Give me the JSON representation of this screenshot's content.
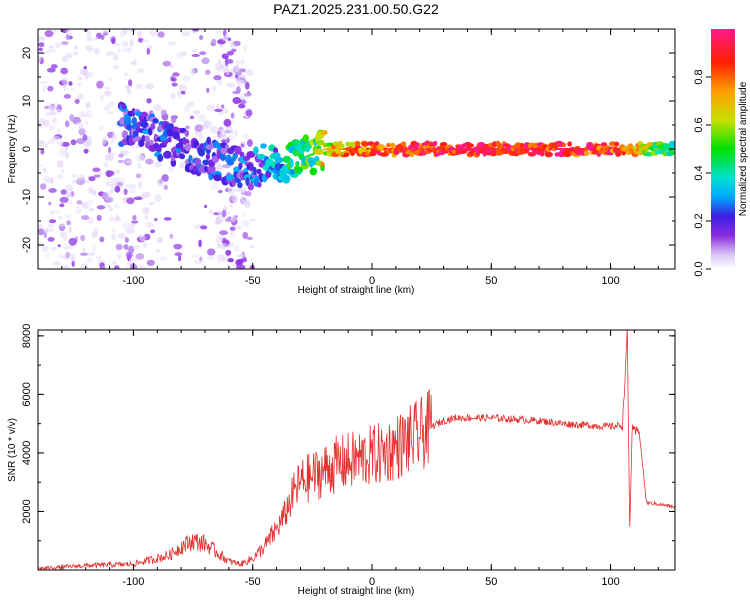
{
  "page_title": "PAZ1.2025.231.00.50.G22",
  "colors": {
    "snr_line": "#e53030",
    "colormap": [
      "#ffffff",
      "#d7c4f4",
      "#8a2be2",
      "#3a1fe0",
      "#00a8ff",
      "#00e0d0",
      "#00e000",
      "#c8e000",
      "#ffa000",
      "#ff2000",
      "#ff1a8a"
    ]
  },
  "chart_data": [
    {
      "type": "heatmap",
      "title": "PAZ1.2025.231.00.50.G22",
      "xlabel": "Height of straight line (km)",
      "ylabel": "Frequency (Hz)",
      "xlim": [
        -140,
        127
      ],
      "ylim": [
        -25,
        25
      ],
      "xticks": [
        -100,
        -50,
        0,
        50,
        100
      ],
      "yticks": [
        -20,
        -10,
        0,
        10,
        20
      ],
      "ytick_labels": [
        "-20",
        "-10",
        "0",
        "10",
        "20"
      ],
      "xtick_labels": [
        "-100",
        "-50",
        "0",
        "50",
        "100"
      ],
      "colorbar": {
        "label": "Normalized spectral amplitude",
        "range": [
          0,
          1
        ],
        "ticks": [
          0.0,
          0.2,
          0.4,
          0.6,
          0.8
        ],
        "tick_labels": [
          "0.0",
          "0.2",
          "0.4",
          "0.6",
          "0.8"
        ]
      },
      "ridge": {
        "x": [
          -100,
          -90,
          -80,
          -70,
          -60,
          -50,
          -45,
          -40,
          -35,
          -30,
          -25,
          -20,
          -10,
          0,
          10,
          50,
          100,
          127
        ],
        "freq": [
          5,
          2,
          0,
          -1.5,
          -3,
          -5,
          -3,
          -2,
          -3,
          -2,
          -1,
          0,
          0,
          0,
          0,
          0,
          0,
          0
        ],
        "amplitude": [
          0.25,
          0.25,
          0.25,
          0.25,
          0.25,
          0.3,
          0.35,
          0.4,
          0.5,
          0.5,
          0.55,
          0.7,
          0.8,
          0.85,
          0.9,
          0.95,
          0.9,
          0.5
        ]
      }
    },
    {
      "type": "line",
      "xlabel": "Height of straight line (km)",
      "ylabel": "SNR (10 * v/v)",
      "xlim": [
        -140,
        127
      ],
      "ylim": [
        0,
        8200
      ],
      "xticks": [
        -100,
        -50,
        0,
        50,
        100
      ],
      "xtick_labels": [
        "-100",
        "-50",
        "0",
        "50",
        "100"
      ],
      "yticks": [
        2000,
        4000,
        6000,
        8000
      ],
      "ytick_labels": [
        "2000",
        "4000",
        "6000",
        "8000"
      ],
      "series": [
        {
          "name": "SNR",
          "x": [
            -140,
            -120,
            -100,
            -90,
            -85,
            -80,
            -75,
            -70,
            -65,
            -60,
            -55,
            -50,
            -45,
            -40,
            -37,
            -35,
            -33,
            -30,
            -25,
            -20,
            -15,
            -10,
            -5,
            0,
            5,
            10,
            15,
            20,
            25,
            30,
            35,
            40,
            50,
            60,
            70,
            80,
            90,
            100,
            105,
            107,
            108,
            109,
            110,
            112,
            115,
            120,
            127
          ],
          "y": [
            50,
            150,
            200,
            400,
            500,
            800,
            1000,
            900,
            600,
            300,
            200,
            400,
            800,
            1400,
            1800,
            2200,
            2600,
            3000,
            3200,
            3400,
            3600,
            3700,
            3800,
            3900,
            4000,
            4200,
            4400,
            4600,
            4900,
            5100,
            5200,
            5200,
            5200,
            5150,
            5100,
            5000,
            4950,
            4900,
            4950,
            8100,
            1400,
            4800,
            4700,
            4750,
            2300,
            2250,
            2150
          ]
        }
      ]
    }
  ]
}
